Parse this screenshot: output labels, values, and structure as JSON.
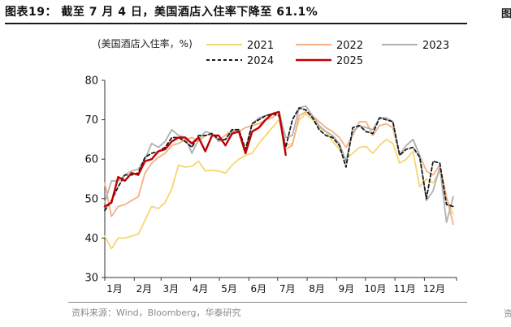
{
  "figure": {
    "title": "图表19：  截至 7 月 4 日，美国酒店入住率下降至 61.1%",
    "source_note": "资料来源：Wind，Bloomberg，华泰研究",
    "edge_glyph_top": "图",
    "edge_glyph_bottom": "资"
  },
  "chart_data": {
    "type": "line",
    "title": "",
    "xlabel": "",
    "ylabel": "(美国酒店入住率，%)",
    "ylim": [
      30,
      80
    ],
    "yticks": [
      30,
      40,
      50,
      60,
      70,
      80
    ],
    "x_unit": "week",
    "xlim": [
      0,
      52.5
    ],
    "xtick_labels": [
      {
        "label": "1月",
        "x": 0
      },
      {
        "label": "2月",
        "x": 4.4
      },
      {
        "label": "3月",
        "x": 8.4
      },
      {
        "label": "4月",
        "x": 12.8
      },
      {
        "label": "5月",
        "x": 17.1
      },
      {
        "label": "6月",
        "x": 21.5
      },
      {
        "label": "7月",
        "x": 25.8
      },
      {
        "label": "8月",
        "x": 30.2
      },
      {
        "label": "9月",
        "x": 34.6
      },
      {
        "label": "10月",
        "x": 38.9
      },
      {
        "label": "11月",
        "x": 43.3
      },
      {
        "label": "12月",
        "x": 47.7
      }
    ],
    "grid": false,
    "legend": "top",
    "series": [
      {
        "name": "2021",
        "color": "#f5d76e",
        "dash": "",
        "x": [
          0,
          1,
          2,
          3,
          4,
          5,
          6,
          7,
          8,
          9,
          10,
          11,
          12,
          13,
          14,
          15,
          16,
          17,
          18,
          19,
          20,
          21,
          22,
          23,
          24,
          25,
          26,
          27,
          28,
          29,
          30,
          31,
          32,
          33,
          34,
          35,
          36,
          37,
          38,
          39,
          40,
          41,
          42,
          43,
          44,
          45,
          46,
          47,
          48,
          49,
          50,
          51,
          52
        ],
        "values": [
          40.5,
          37.3,
          40.0,
          40.0,
          40.5,
          41.0,
          44.5,
          48.0,
          47.5,
          49.0,
          52.5,
          58.5,
          58.0,
          58.2,
          59.5,
          57.0,
          57.2,
          57.0,
          56.5,
          58.5,
          60.0,
          61.0,
          61.5,
          64.0,
          66.0,
          68.0,
          70.0,
          63.5,
          64.0,
          70.0,
          71.5,
          70.0,
          68.0,
          67.0,
          64.5,
          62.5,
          60.0,
          61.5,
          63.0,
          63.2,
          61.5,
          63.5,
          65.0,
          64.0,
          59.0,
          60.0,
          62.0,
          53.0,
          55.0,
          54.0,
          57.0,
          50.0,
          46.0
        ]
      },
      {
        "name": "2022",
        "color": "#f4b183",
        "dash": "",
        "x": [
          0,
          1,
          2,
          3,
          4,
          5,
          6,
          7,
          8,
          9,
          10,
          11,
          12,
          13,
          14,
          15,
          16,
          17,
          18,
          19,
          20,
          21,
          22,
          23,
          24,
          25,
          26,
          27,
          28,
          29,
          30,
          31,
          32,
          33,
          34,
          35,
          36,
          37,
          38,
          39,
          40,
          41,
          42,
          43,
          44,
          45,
          46,
          47,
          48,
          49,
          50,
          51,
          52
        ],
        "values": [
          54.0,
          45.5,
          48.0,
          48.5,
          49.5,
          50.5,
          56.5,
          59.0,
          60.5,
          61.5,
          63.5,
          64.0,
          65.0,
          65.5,
          64.5,
          66.0,
          66.5,
          65.0,
          66.0,
          67.5,
          67.0,
          68.0,
          68.5,
          69.0,
          70.0,
          70.5,
          72.0,
          62.5,
          63.5,
          71.0,
          72.0,
          71.0,
          69.5,
          68.0,
          67.0,
          65.5,
          63.0,
          66.0,
          69.5,
          69.5,
          66.0,
          68.5,
          69.0,
          68.0,
          61.0,
          63.5,
          65.0,
          61.0,
          57.0,
          56.0,
          58.5,
          50.5,
          43.5
        ]
      },
      {
        "name": "2023",
        "color": "#b0b0b0",
        "dash": "",
        "x": [
          0,
          1,
          2,
          3,
          4,
          5,
          6,
          7,
          8,
          9,
          10,
          11,
          12,
          13,
          14,
          15,
          16,
          17,
          18,
          19,
          20,
          21,
          22,
          23,
          24,
          25,
          26,
          27,
          28,
          29,
          30,
          31,
          32,
          33,
          34,
          35,
          36,
          37,
          38,
          39,
          40,
          41,
          42,
          43,
          44,
          45,
          46,
          47,
          48,
          49,
          50,
          51,
          52
        ],
        "values": [
          49.0,
          54.5,
          54.5,
          56.0,
          57.0,
          57.5,
          60.0,
          64.0,
          63.0,
          64.5,
          67.5,
          66.0,
          65.5,
          61.5,
          65.0,
          67.0,
          66.5,
          64.5,
          65.0,
          67.0,
          67.5,
          62.0,
          69.0,
          70.5,
          71.0,
          71.5,
          72.0,
          65.5,
          66.0,
          73.0,
          73.5,
          71.0,
          68.5,
          67.0,
          66.0,
          64.0,
          59.5,
          67.0,
          68.5,
          68.0,
          67.5,
          70.5,
          70.5,
          69.5,
          61.0,
          63.5,
          65.0,
          61.0,
          49.5,
          52.0,
          58.0,
          44.0,
          50.5
        ]
      },
      {
        "name": "2024",
        "color": "#1a1a1a",
        "dash": "4,3",
        "x": [
          0,
          1,
          2,
          3,
          4,
          5,
          6,
          7,
          8,
          9,
          10,
          11,
          12,
          13,
          14,
          15,
          16,
          17,
          18,
          19,
          20,
          21,
          22,
          23,
          24,
          25,
          26,
          27,
          28,
          29,
          30,
          31,
          32,
          33,
          34,
          35,
          36,
          37,
          38,
          39,
          40,
          41,
          42,
          43,
          44,
          45,
          46,
          47,
          48,
          49,
          50,
          51,
          52
        ],
        "values": [
          47.0,
          49.5,
          53.0,
          56.0,
          56.0,
          56.5,
          60.5,
          61.5,
          62.0,
          63.0,
          65.5,
          65.5,
          64.5,
          63.0,
          66.0,
          66.0,
          66.5,
          65.0,
          65.0,
          67.5,
          67.5,
          62.5,
          69.0,
          70.0,
          71.0,
          71.5,
          71.0,
          63.0,
          70.0,
          73.0,
          72.5,
          70.5,
          67.5,
          66.0,
          65.5,
          63.5,
          58.0,
          68.0,
          68.5,
          67.0,
          66.5,
          70.5,
          70.0,
          69.5,
          61.0,
          62.5,
          63.0,
          60.5,
          50.0,
          59.5,
          59.0,
          48.5,
          48.0
        ]
      },
      {
        "name": "2025",
        "color": "#c00000",
        "dash": "",
        "x": [
          0,
          1,
          2,
          3,
          4,
          5,
          6,
          7,
          8,
          9,
          10,
          11,
          12,
          13,
          14,
          15,
          16,
          17,
          18,
          19,
          20,
          21,
          22,
          23,
          24,
          25,
          26,
          27
        ],
        "values": [
          48.0,
          49.0,
          55.5,
          54.5,
          56.5,
          56.0,
          59.5,
          60.0,
          62.0,
          62.5,
          64.5,
          65.5,
          65.5,
          64.0,
          65.5,
          62.0,
          66.0,
          66.0,
          63.5,
          66.5,
          67.0,
          61.5,
          67.0,
          68.0,
          70.0,
          71.5,
          72.0,
          61.1
        ]
      }
    ]
  }
}
